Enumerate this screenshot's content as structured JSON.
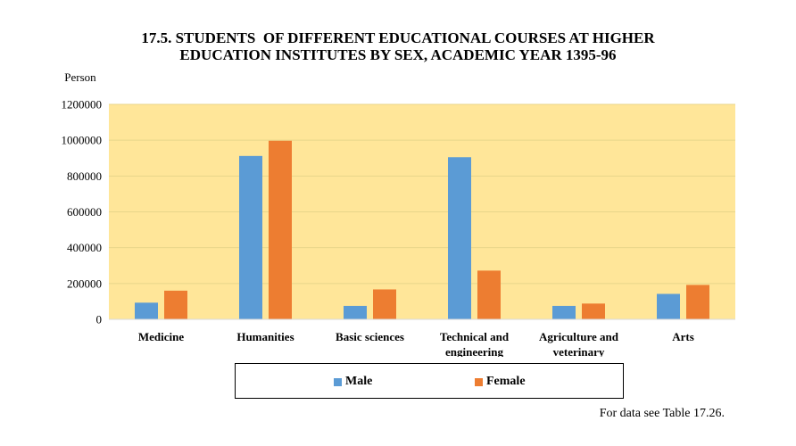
{
  "colors": {
    "plot_bg": "#FFE699",
    "male": "#5B9BD5",
    "female": "#ED7D31",
    "grid": "#E8D58A"
  },
  "chart_data": {
    "type": "bar",
    "title_line1": "17.5. STUDENTS  OF DIFFERENT EDUCATIONAL COURSES AT HIGHER",
    "title_line2": "EDUCATION INSTITUTES BY SEX, ACADEMIC YEAR 1395-96",
    "ylabel": "Person",
    "xlabel": "",
    "ylim": [
      0,
      1200000
    ],
    "yticks": [
      0,
      200000,
      400000,
      600000,
      800000,
      1000000,
      1200000
    ],
    "categories": [
      [
        "Medicine"
      ],
      [
        "Humanities"
      ],
      [
        "Basic sciences"
      ],
      [
        "Technical and",
        "engineering"
      ],
      [
        "Agriculture and",
        "veterinary"
      ],
      [
        "Arts"
      ]
    ],
    "series": [
      {
        "name": "Male",
        "values": [
          93000,
          912000,
          75000,
          905000,
          75000,
          142000
        ]
      },
      {
        "name": "Female",
        "values": [
          160000,
          997000,
          167000,
          272000,
          88000,
          192000
        ]
      }
    ],
    "grid": true,
    "legend_position": "bottom"
  },
  "footnote": "For data see Table 17.26."
}
